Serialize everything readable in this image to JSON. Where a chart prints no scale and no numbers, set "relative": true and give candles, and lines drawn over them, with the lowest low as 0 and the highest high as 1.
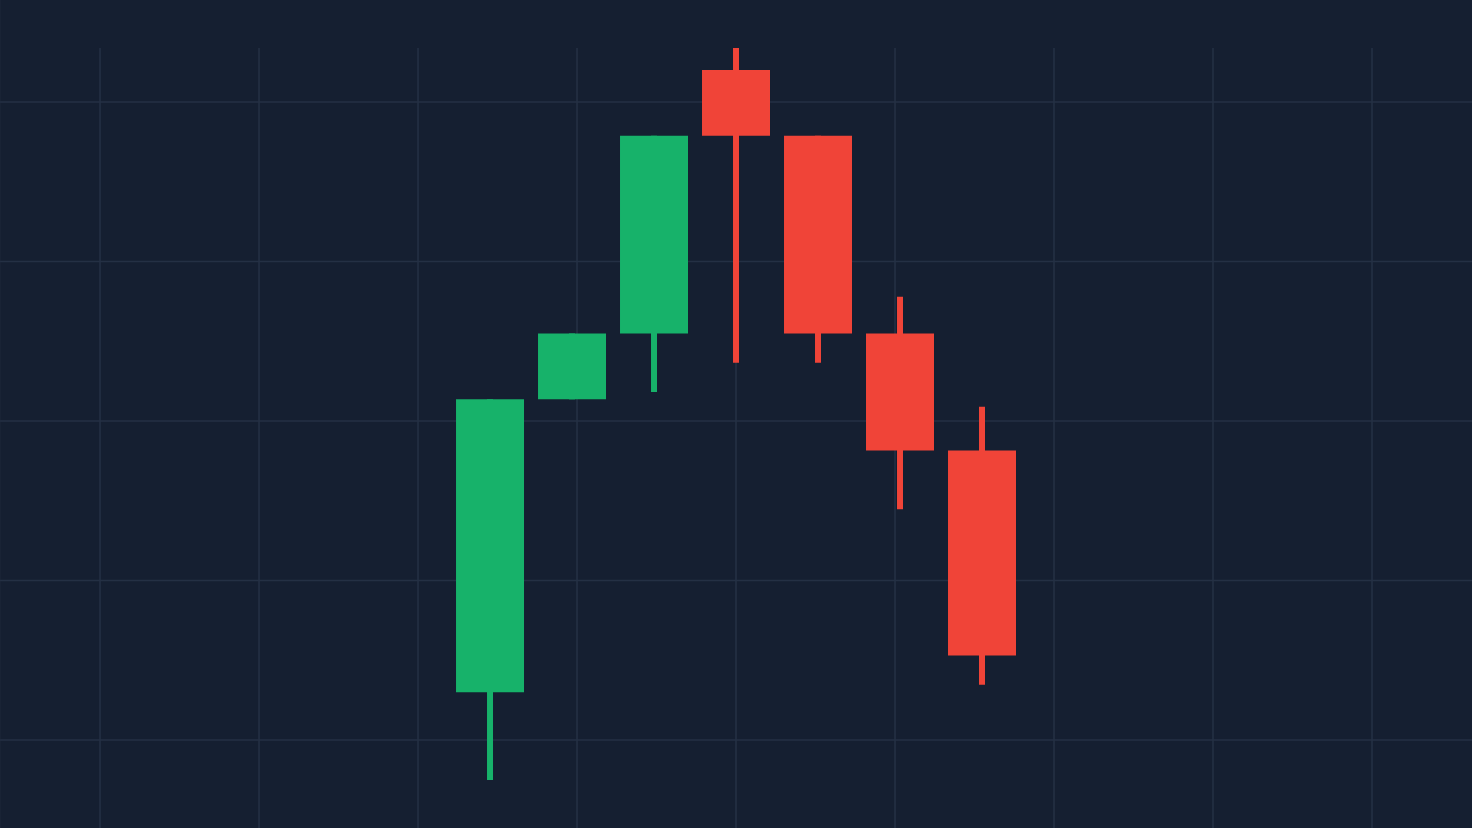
{
  "chart_data": {
    "type": "candlestick",
    "relative": true,
    "categories": [
      null,
      null,
      null,
      null,
      null,
      null,
      null
    ],
    "ohlc": [
      [
        0.12,
        0.52,
        0,
        0.52
      ],
      [
        0.52,
        0.61,
        0.52,
        0.61
      ],
      [
        0.61,
        0.88,
        0.53,
        0.88
      ],
      [
        0.97,
        1,
        0.57,
        0.88
      ],
      [
        0.88,
        0.88,
        0.57,
        0.61
      ],
      [
        0.61,
        0.66,
        0.37,
        0.45
      ],
      [
        0.45,
        0.51,
        0.13,
        0.17
      ]
    ],
    "colors": [
      "#17b26a",
      "#17b26a",
      "#17b26a",
      "#f04438",
      "#f04438",
      "#f04438",
      "#f04438"
    ],
    "grid": true
  }
}
